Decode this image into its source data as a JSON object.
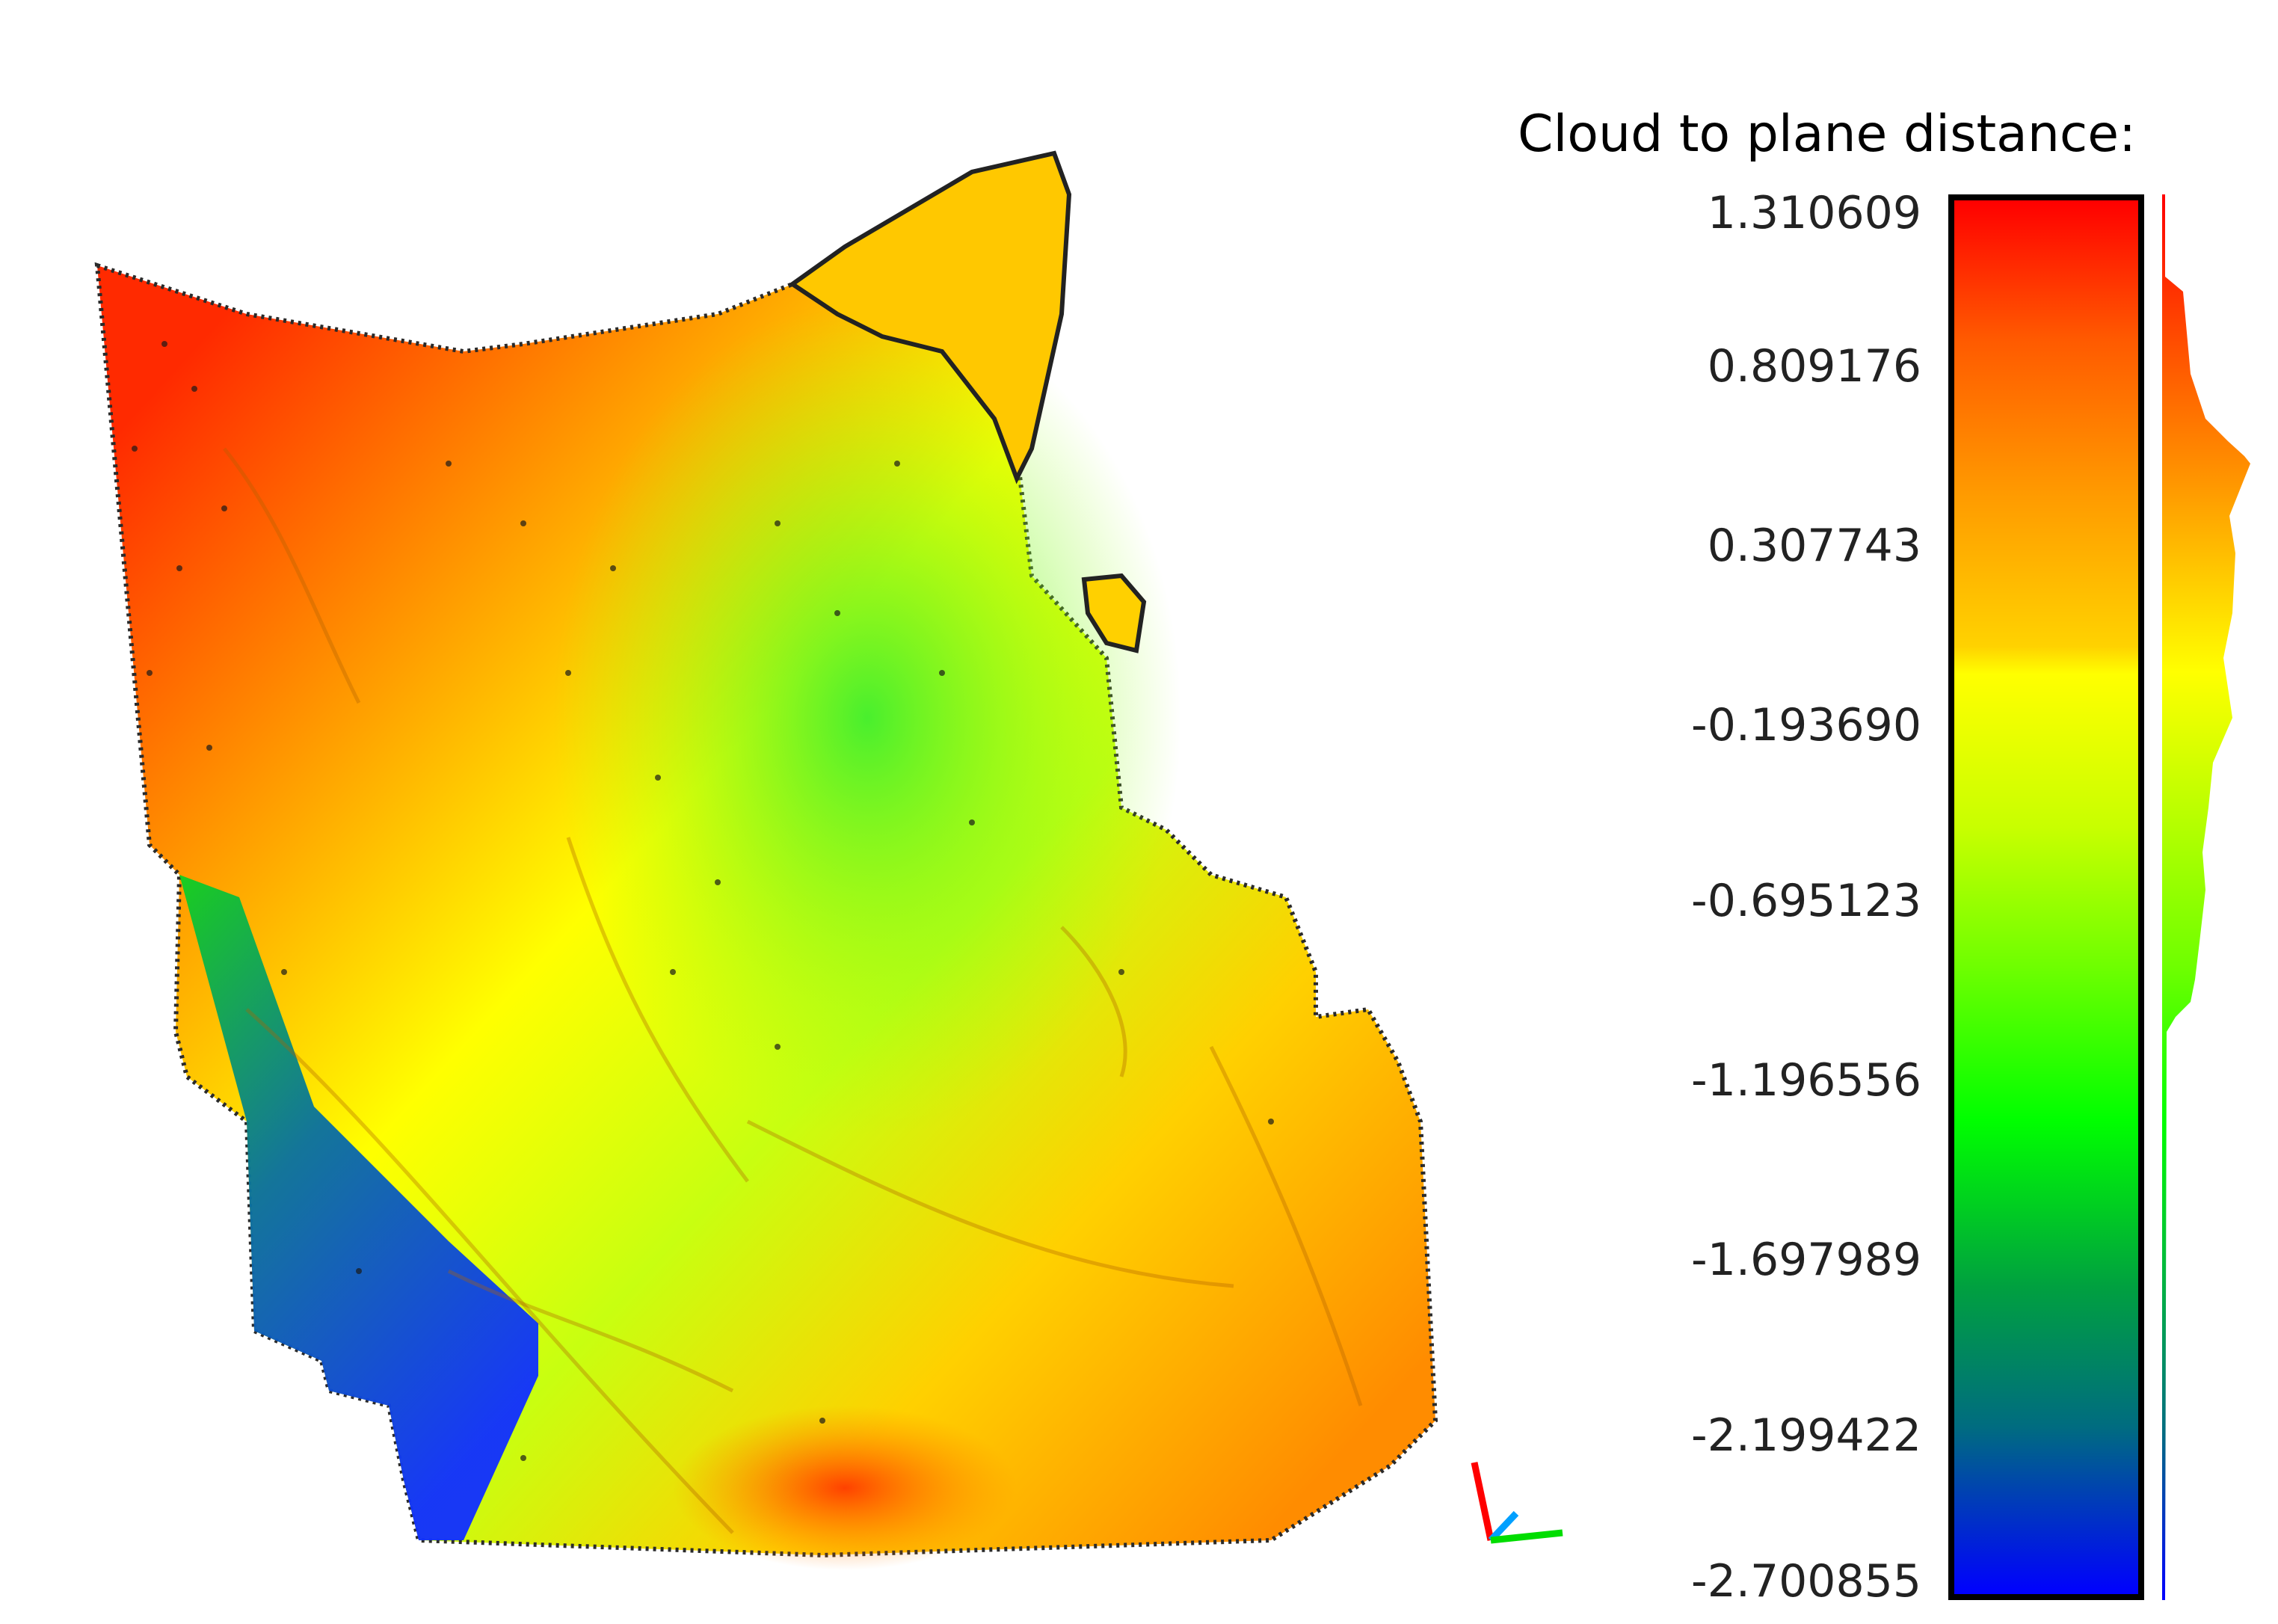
{
  "scalar_field": {
    "title": "Cloud to plane distance:",
    "ticks": [
      "1.310609",
      "0.809176",
      "0.307743",
      "-0.193690",
      "-0.695123",
      "-1.196556",
      "-1.697989",
      "-2.199422",
      "-2.700855"
    ]
  },
  "colors": {
    "scale_top": "#ff0000",
    "scale_mid": "#ffff00",
    "scale_low": "#00ff00",
    "scale_bottom": "#0000ff",
    "axis_x": "#00dd00",
    "axis_y": "#00a0ff",
    "axis_z": "#ff0000"
  }
}
